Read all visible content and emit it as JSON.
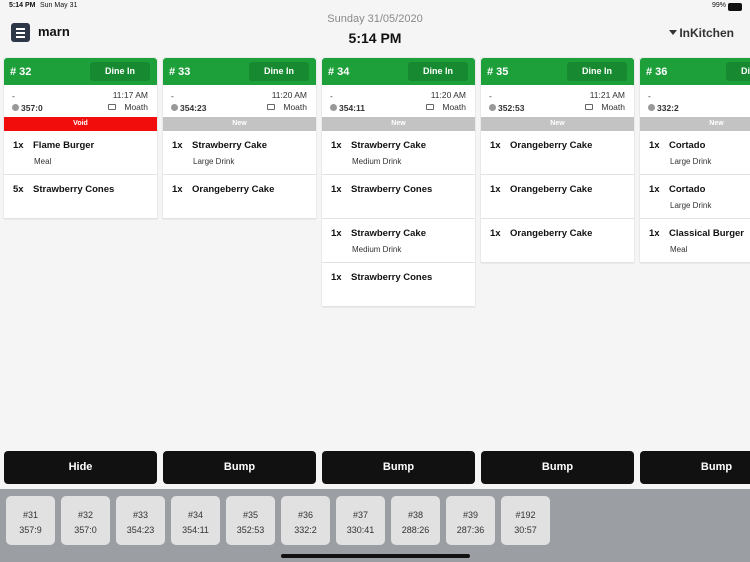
{
  "status_bar": {
    "time": "5:14 PM",
    "date": "Sun May 31",
    "battery": "99%"
  },
  "header": {
    "brand": "marn",
    "date": "Sunday 31/05/2020",
    "time": "5:14 PM",
    "station": "InKitchen"
  },
  "orders": [
    {
      "number": "# 32",
      "type": "Dine In",
      "customer": "-",
      "time": "11:17 AM",
      "timer": "357:0",
      "waiter": "Moath",
      "status": "Void",
      "items": [
        {
          "qty": "1x",
          "name": "Flame Burger",
          "note": "Meal"
        },
        {
          "qty": "5x",
          "name": "Strawberry Cones"
        }
      ],
      "action": "Hide"
    },
    {
      "number": "# 33",
      "type": "Dine In",
      "customer": "-",
      "time": "11:20 AM",
      "timer": "354:23",
      "waiter": "Moath",
      "status": "New",
      "items": [
        {
          "qty": "1x",
          "name": "Strawberry Cake",
          "note": "Large Drink"
        },
        {
          "qty": "1x",
          "name": "Orangeberry Cake"
        }
      ],
      "action": "Bump"
    },
    {
      "number": "# 34",
      "type": "Dine In",
      "customer": "-",
      "time": "11:20 AM",
      "timer": "354:11",
      "waiter": "Moath",
      "status": "New",
      "items": [
        {
          "qty": "1x",
          "name": "Strawberry Cake",
          "note": "Medium Drink"
        },
        {
          "qty": "1x",
          "name": "Strawberry Cones"
        },
        {
          "qty": "1x",
          "name": "Strawberry Cake",
          "note": "Medium Drink"
        },
        {
          "qty": "1x",
          "name": "Strawberry Cones"
        }
      ],
      "action": "Bump"
    },
    {
      "number": "# 35",
      "type": "Dine In",
      "customer": "-",
      "time": "11:21 AM",
      "timer": "352:53",
      "waiter": "Moath",
      "status": "New",
      "items": [
        {
          "qty": "1x",
          "name": "Orangeberry Cake"
        },
        {
          "qty": "1x",
          "name": "Orangeberry Cake"
        },
        {
          "qty": "1x",
          "name": "Orangeberry Cake"
        }
      ],
      "action": "Bump"
    },
    {
      "number": "# 36",
      "type": "Dine In",
      "customer": "-",
      "timer": "332:2",
      "status": "New",
      "items": [
        {
          "qty": "1x",
          "name": "Cortado",
          "note": "Large Drink"
        },
        {
          "qty": "1x",
          "name": "Cortado",
          "note": "Large Drink"
        },
        {
          "qty": "1x",
          "name": "Classical Burger",
          "note": "Meal"
        }
      ],
      "action": "Bump"
    }
  ],
  "tray": [
    {
      "number": "#31",
      "timer": "357:9"
    },
    {
      "number": "#32",
      "timer": "357:0"
    },
    {
      "number": "#33",
      "timer": "354:23"
    },
    {
      "number": "#34",
      "timer": "354:11"
    },
    {
      "number": "#35",
      "timer": "352:53"
    },
    {
      "number": "#36",
      "timer": "332:2"
    },
    {
      "number": "#37",
      "timer": "330:41"
    },
    {
      "number": "#38",
      "timer": "288:26"
    },
    {
      "number": "#39",
      "timer": "287:36"
    },
    {
      "number": "#192",
      "timer": "30:57"
    }
  ]
}
